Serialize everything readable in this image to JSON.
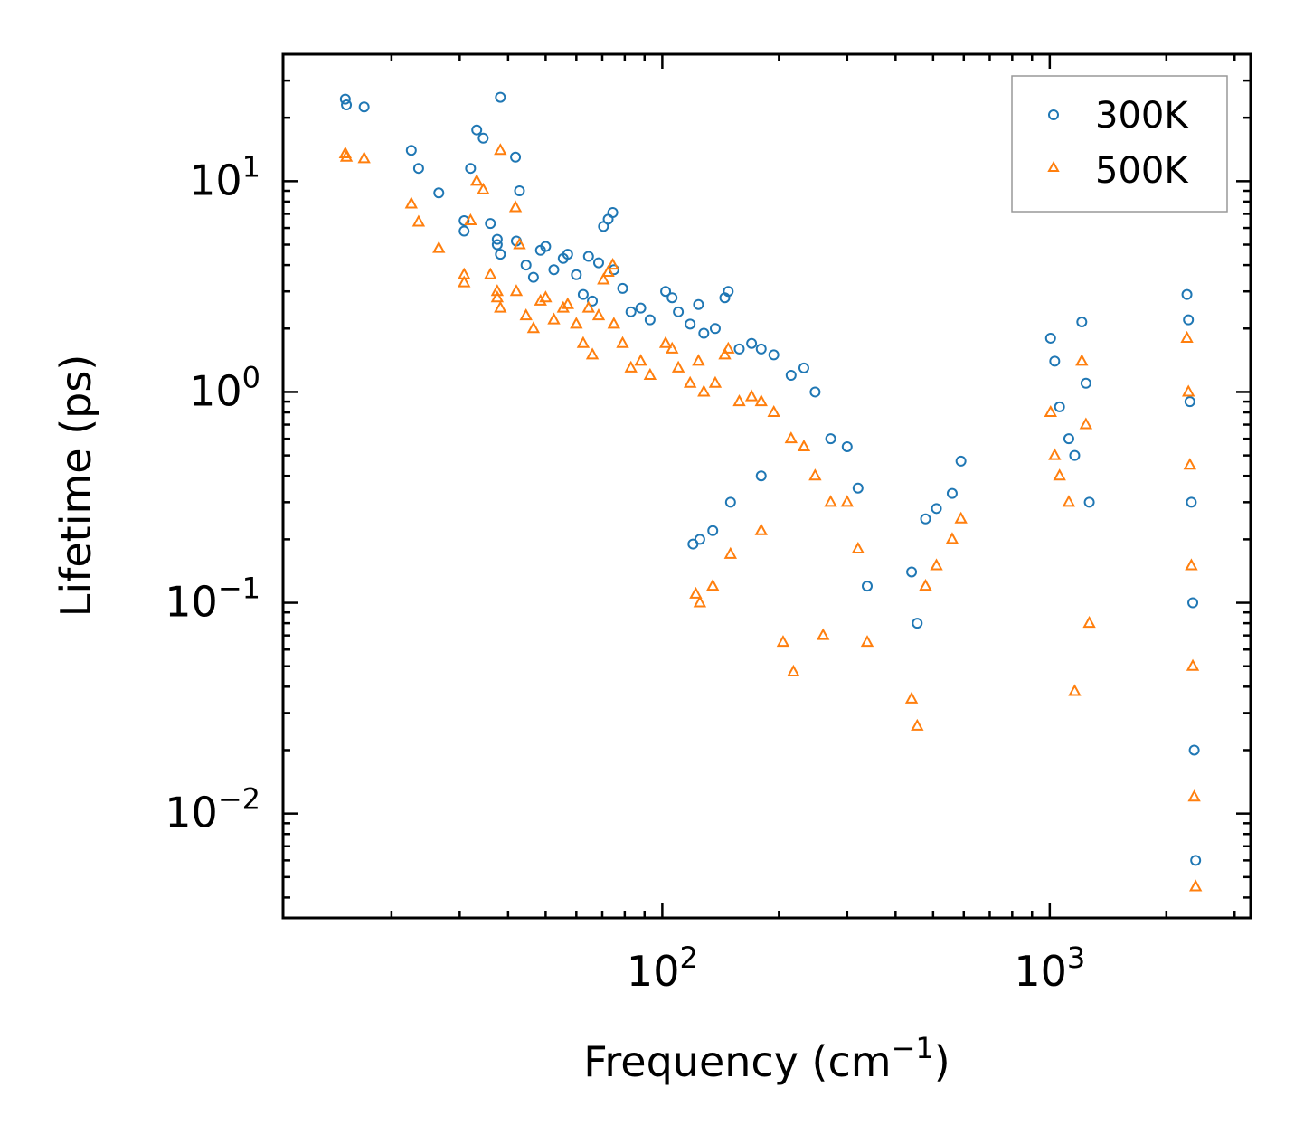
{
  "chart_data": {
    "type": "scatter",
    "title": "",
    "xlabel": "Frequency (cm",
    "xlabel_sup": "−1",
    "xlabel_end": ")",
    "ylabel": "Lifetime (ps)",
    "xscale": "log",
    "yscale": "log",
    "xlim": [
      10.5,
      3300
    ],
    "ylim": [
      0.0032,
      40
    ],
    "x_ticks": [
      {
        "value": 100,
        "base": "10",
        "exp": "2"
      },
      {
        "value": 1000,
        "base": "10",
        "exp": "3"
      }
    ],
    "y_ticks": [
      {
        "value": 0.01,
        "base": "10",
        "exp": "−2"
      },
      {
        "value": 0.1,
        "base": "10",
        "exp": "−1"
      },
      {
        "value": 1,
        "base": "10",
        "exp": "0"
      },
      {
        "value": 10,
        "base": "10",
        "exp": "1"
      }
    ],
    "legend_position": "top-right",
    "series": [
      {
        "name": "300K",
        "marker": "circle",
        "color": "#1f77b4",
        "points": [
          [
            15.2,
            24.5
          ],
          [
            15.3,
            23.0
          ],
          [
            17.0,
            22.5
          ],
          [
            22.5,
            14.0
          ],
          [
            23.5,
            11.5
          ],
          [
            26.5,
            8.8
          ],
          [
            30.8,
            6.5
          ],
          [
            30.8,
            5.8
          ],
          [
            32.0,
            11.5
          ],
          [
            33.2,
            17.5
          ],
          [
            34.5,
            16.0
          ],
          [
            36.0,
            6.3
          ],
          [
            37.5,
            5.3
          ],
          [
            37.5,
            5.0
          ],
          [
            38.2,
            4.5
          ],
          [
            38.2,
            25.0
          ],
          [
            41.8,
            13.0
          ],
          [
            42.0,
            5.2
          ],
          [
            42.8,
            9.0
          ],
          [
            44.5,
            4.0
          ],
          [
            46.5,
            3.5
          ],
          [
            48.5,
            4.7
          ],
          [
            50.0,
            4.9
          ],
          [
            52.5,
            3.8
          ],
          [
            55.5,
            4.3
          ],
          [
            57.0,
            4.5
          ],
          [
            60.0,
            3.6
          ],
          [
            62.5,
            2.9
          ],
          [
            64.5,
            4.4
          ],
          [
            66.0,
            2.7
          ],
          [
            68.5,
            4.1
          ],
          [
            70.5,
            6.1
          ],
          [
            72.5,
            6.6
          ],
          [
            74.5,
            7.1
          ],
          [
            75.0,
            3.8
          ],
          [
            79.0,
            3.1
          ],
          [
            83.0,
            2.4
          ],
          [
            88.0,
            2.5
          ],
          [
            93.0,
            2.2
          ],
          [
            102.0,
            3.0
          ],
          [
            106.0,
            2.8
          ],
          [
            110.0,
            2.4
          ],
          [
            118.0,
            2.1
          ],
          [
            124.0,
            2.6
          ],
          [
            128.0,
            1.9
          ],
          [
            137.0,
            2.0
          ],
          [
            145.0,
            2.8
          ],
          [
            148.0,
            3.0
          ],
          [
            158.0,
            1.6
          ],
          [
            170.0,
            1.7
          ],
          [
            180.0,
            1.6
          ],
          [
            194.0,
            1.5
          ],
          [
            215.0,
            1.2
          ],
          [
            232.0,
            1.3
          ],
          [
            248.0,
            1.0
          ],
          [
            272.0,
            0.6
          ],
          [
            300.0,
            0.55
          ],
          [
            320.0,
            0.35
          ],
          [
            338.0,
            0.12
          ],
          [
            120.0,
            0.19
          ],
          [
            125.0,
            0.2
          ],
          [
            135.0,
            0.22
          ],
          [
            150.0,
            0.3
          ],
          [
            180.0,
            0.4
          ],
          [
            440.0,
            0.14
          ],
          [
            455.0,
            0.08
          ],
          [
            478.0,
            0.25
          ],
          [
            510.0,
            0.28
          ],
          [
            560.0,
            0.33
          ],
          [
            590.0,
            0.47
          ],
          [
            1005.0,
            1.8
          ],
          [
            1030.0,
            1.4
          ],
          [
            1060.0,
            0.85
          ],
          [
            1120.0,
            0.6
          ],
          [
            1160.0,
            0.5
          ],
          [
            1210.0,
            2.15
          ],
          [
            1240.0,
            1.1
          ],
          [
            1265.0,
            0.3
          ],
          [
            2260.0,
            2.9
          ],
          [
            2280.0,
            2.2
          ],
          [
            2300.0,
            0.9
          ],
          [
            2320.0,
            0.3
          ],
          [
            2340.0,
            0.1
          ],
          [
            2360.0,
            0.02
          ],
          [
            2380.0,
            0.006
          ]
        ]
      },
      {
        "name": "500K",
        "marker": "triangle",
        "color": "#ff7f0e",
        "points": [
          [
            15.2,
            13.5
          ],
          [
            15.3,
            13.0
          ],
          [
            17.0,
            12.8
          ],
          [
            22.5,
            7.8
          ],
          [
            23.5,
            6.4
          ],
          [
            26.5,
            4.8
          ],
          [
            30.8,
            3.6
          ],
          [
            30.8,
            3.3
          ],
          [
            32.0,
            6.5
          ],
          [
            33.2,
            10.0
          ],
          [
            34.5,
            9.1
          ],
          [
            36.0,
            3.6
          ],
          [
            37.5,
            3.0
          ],
          [
            37.5,
            2.8
          ],
          [
            38.2,
            2.5
          ],
          [
            38.2,
            14.0
          ],
          [
            41.8,
            7.5
          ],
          [
            42.0,
            3.0
          ],
          [
            42.8,
            5.0
          ],
          [
            44.5,
            2.3
          ],
          [
            46.5,
            2.0
          ],
          [
            48.5,
            2.7
          ],
          [
            50.0,
            2.8
          ],
          [
            52.5,
            2.2
          ],
          [
            55.5,
            2.5
          ],
          [
            57.0,
            2.6
          ],
          [
            60.0,
            2.1
          ],
          [
            62.5,
            1.7
          ],
          [
            64.5,
            2.5
          ],
          [
            66.0,
            1.5
          ],
          [
            68.5,
            2.3
          ],
          [
            70.5,
            3.4
          ],
          [
            72.5,
            3.7
          ],
          [
            74.5,
            4.0
          ],
          [
            75.0,
            2.1
          ],
          [
            79.0,
            1.7
          ],
          [
            83.0,
            1.3
          ],
          [
            88.0,
            1.4
          ],
          [
            93.0,
            1.2
          ],
          [
            102.0,
            1.7
          ],
          [
            106.0,
            1.6
          ],
          [
            110.0,
            1.3
          ],
          [
            118.0,
            1.1
          ],
          [
            124.0,
            1.4
          ],
          [
            128.0,
            1.0
          ],
          [
            137.0,
            1.1
          ],
          [
            145.0,
            1.5
          ],
          [
            148.0,
            1.6
          ],
          [
            158.0,
            0.9
          ],
          [
            170.0,
            0.95
          ],
          [
            180.0,
            0.9
          ],
          [
            194.0,
            0.8
          ],
          [
            215.0,
            0.6
          ],
          [
            232.0,
            0.55
          ],
          [
            248.0,
            0.4
          ],
          [
            272.0,
            0.3
          ],
          [
            300.0,
            0.3
          ],
          [
            320.0,
            0.18
          ],
          [
            338.0,
            0.065
          ],
          [
            122.0,
            0.11
          ],
          [
            125.0,
            0.1
          ],
          [
            135.0,
            0.12
          ],
          [
            150.0,
            0.17
          ],
          [
            180.0,
            0.22
          ],
          [
            218.0,
            0.047
          ],
          [
            205.0,
            0.065
          ],
          [
            260.0,
            0.07
          ],
          [
            440.0,
            0.035
          ],
          [
            455.0,
            0.026
          ],
          [
            478.0,
            0.12
          ],
          [
            510.0,
            0.15
          ],
          [
            560.0,
            0.2
          ],
          [
            590.0,
            0.25
          ],
          [
            1005.0,
            0.8
          ],
          [
            1030.0,
            0.5
          ],
          [
            1060.0,
            0.4
          ],
          [
            1120.0,
            0.3
          ],
          [
            1160.0,
            0.038
          ],
          [
            1210.0,
            1.4
          ],
          [
            1240.0,
            0.7
          ],
          [
            1265.0,
            0.08
          ],
          [
            2260.0,
            1.8
          ],
          [
            2280.0,
            1.0
          ],
          [
            2300.0,
            0.45
          ],
          [
            2320.0,
            0.15
          ],
          [
            2340.0,
            0.05
          ],
          [
            2360.0,
            0.012
          ],
          [
            2380.0,
            0.0045
          ]
        ]
      }
    ]
  }
}
